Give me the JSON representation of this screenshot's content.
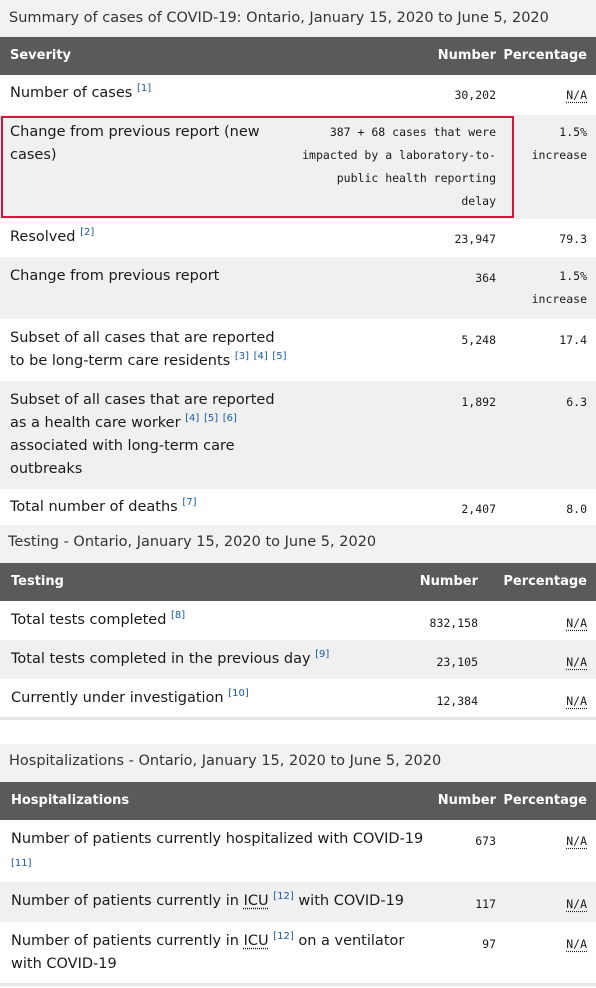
{
  "summary": {
    "caption": "Summary of cases of COVID-19: Ontario, January 15, 2020 to June 5, 2020",
    "headers": {
      "col1": "Severity",
      "col2": "Number",
      "col3": "Percentage"
    },
    "rows": [
      {
        "label": "Number of cases",
        "refs": "[1]",
        "number": "30,202",
        "percentage": "N/A"
      },
      {
        "label_line1": "Change from previous report (new",
        "label_line2": "cases)",
        "number_lines": [
          "387 + 68 cases that were",
          "impacted by a laboratory-to-",
          "public health reporting",
          "delay"
        ],
        "percentage_line1": "1.5%",
        "percentage_line2": "increase"
      },
      {
        "label": "Resolved",
        "refs": "[2]",
        "number": "23,947",
        "percentage": "79.3"
      },
      {
        "label": "Change from previous report",
        "number": "364",
        "percentage_line1": "1.5%",
        "percentage_line2": "increase"
      },
      {
        "label_line1": "Subset of all cases that are reported",
        "label_line2": "to be long-term care residents",
        "refs": [
          "[3]",
          "[4]",
          "[5]"
        ],
        "number": "5,248",
        "percentage": "17.4"
      },
      {
        "label_line1": "Subset of all cases that are reported",
        "label_line2": "as a health care worker",
        "refs": [
          "[4]",
          "[5]",
          "[6]"
        ],
        "label_line3": "associated with long-term care",
        "label_line4": "outbreaks",
        "number": "1,892",
        "percentage": "6.3"
      },
      {
        "label": "Total number of deaths",
        "refs": "[7]",
        "number": "2,407",
        "percentage": "8.0"
      }
    ]
  },
  "testing": {
    "caption_strong": "Testing",
    "caption_rest": " - Ontario, January 15, 2020 to June 5, 2020",
    "headers": {
      "col1": "Testing",
      "col2": "Number",
      "col3": "Percentage"
    },
    "rows": [
      {
        "label": "Total tests completed",
        "refs": "[8]",
        "number": "832,158",
        "percentage": "N/A"
      },
      {
        "label": "Total tests completed in the previous day",
        "refs": "[9]",
        "number": "23,105",
        "percentage": "N/A"
      },
      {
        "label": "Currently under investigation",
        "refs": "[10]",
        "number": "12,384",
        "percentage": "N/A"
      }
    ]
  },
  "hospitalizations": {
    "caption_strong": "Hospitalizations",
    "caption_rest": " - Ontario, January 15, 2020 to June 5, 2020",
    "headers": {
      "col1": "Hospitalizations",
      "col2": "Number",
      "col3": "Percentage"
    },
    "rows": [
      {
        "label": "Number of patients currently hospitalized with COVID-19",
        "refs": "[11]",
        "number": "673",
        "percentage": "N/A"
      },
      {
        "label_pre": "Number of patients currently in ",
        "abbr": "ICU",
        "refs": "[12]",
        "label_post": " with COVID-19",
        "number": "117",
        "percentage": "N/A"
      },
      {
        "label_pre": "Number of patients currently in ",
        "abbr": "ICU",
        "refs": "[12]",
        "label_post": " on a ventilator",
        "label_line2": "with COVID-19",
        "number": "97",
        "percentage": "N/A"
      }
    ]
  }
}
